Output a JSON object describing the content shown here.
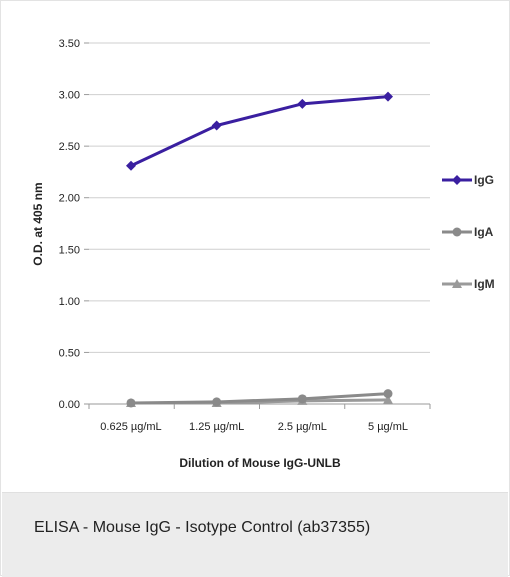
{
  "caption": "ELISA - Mouse IgG - Isotype Control (ab37355)",
  "chart_data": {
    "type": "line",
    "title": "",
    "xlabel": "Dilution of Mouse IgG-UNLB",
    "ylabel": "O.D. at 405 nm",
    "categories": [
      "0.625 µg/mL",
      "1.25 µg/mL",
      "2.5 µg/mL",
      "5 µg/mL"
    ],
    "yticks": [
      "0.00",
      "0.50",
      "1.00",
      "1.50",
      "2.00",
      "2.50",
      "3.00",
      "3.50"
    ],
    "ylim": [
      0,
      3.5
    ],
    "grid": true,
    "legend_position": "right",
    "series": [
      {
        "name": "IgG",
        "values": [
          2.31,
          2.7,
          2.91,
          2.98
        ],
        "color": "#3a1fa0",
        "marker": "diamond"
      },
      {
        "name": "IgA",
        "values": [
          0.01,
          0.02,
          0.05,
          0.1
        ],
        "color": "#8a8a8a",
        "marker": "circle"
      },
      {
        "name": "IgM",
        "values": [
          0.01,
          0.01,
          0.03,
          0.04
        ],
        "color": "#9a9a9a",
        "marker": "triangle"
      }
    ]
  }
}
